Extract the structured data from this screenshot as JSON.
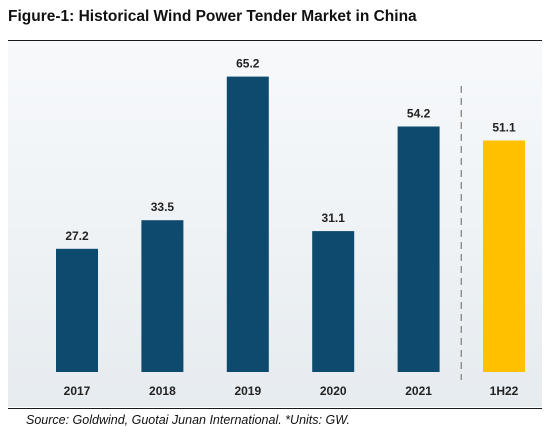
{
  "header": {
    "title": "Figure-1: Historical Wind Power Tender Market in China"
  },
  "footer": {
    "source": "Source: Goldwind, Guotai Junan International. *Units: GW."
  },
  "colors": {
    "bar_primary": "#0d4a6e",
    "bar_highlight": "#ffc000",
    "separator": "#8c8c8c"
  },
  "chart_data": {
    "type": "bar",
    "title": "Figure-1: Historical Wind Power Tender Market in China",
    "xlabel": "",
    "ylabel": "",
    "units": "GW",
    "categories": [
      "2017",
      "2018",
      "2019",
      "2020",
      "2021",
      "1H22"
    ],
    "values": [
      27.2,
      33.5,
      65.2,
      31.1,
      54.2,
      51.1
    ],
    "data_labels": [
      "27.2",
      "33.5",
      "65.2",
      "31.1",
      "54.2",
      "51.1"
    ],
    "ylim": [
      0,
      70
    ],
    "grid": false,
    "legend": "none",
    "highlight_category": "1H22",
    "separator_before": "1H22"
  }
}
